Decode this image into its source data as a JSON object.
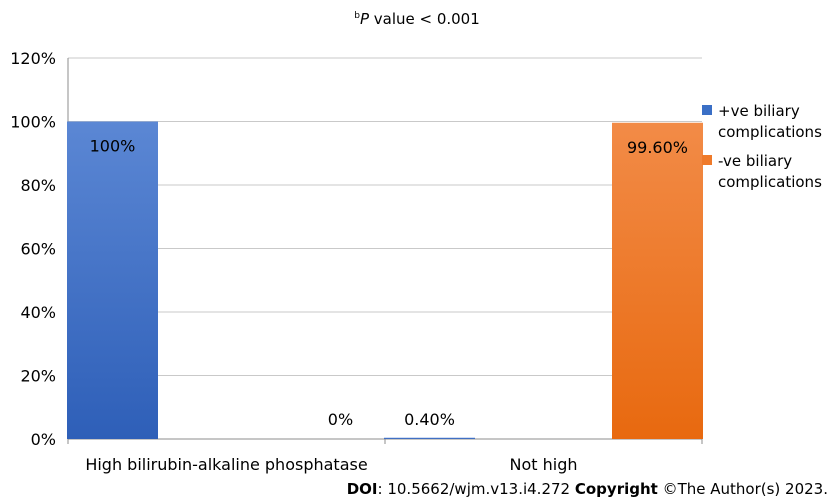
{
  "title": {
    "sup": "b",
    "p": "P",
    "rest": " value < 0.001"
  },
  "chart_data": {
    "type": "bar",
    "categories": [
      "High bilirubin-alkaline phosphatase",
      "Not high"
    ],
    "series": [
      {
        "name": "+ve biliary complications",
        "values": [
          100,
          0.4
        ],
        "labels": [
          "100%",
          "0.40%"
        ],
        "color": "#3a6fc6"
      },
      {
        "name": "-ve biliary complications",
        "values": [
          0,
          99.6
        ],
        "labels": [
          "0%",
          "99.60%"
        ],
        "color": "#ef7a2a"
      }
    ],
    "yticks": [
      "0%",
      "20%",
      "40%",
      "60%",
      "80%",
      "100%",
      "120%"
    ],
    "ylim": [
      0,
      120
    ],
    "grid": true,
    "legend": "right"
  },
  "legend": {
    "items": [
      {
        "line1": "+ve biliary",
        "line2": "complications",
        "color": "#3a6fc6"
      },
      {
        "line1": "-ve biliary",
        "line2": "complications",
        "color": "#ef7a2a"
      }
    ]
  },
  "footer": {
    "doi_label": "DOI",
    "doi_value": ": 10.5662/wjm.v13.i4.272 ",
    "copyright_label": "Copyright",
    "copyright_value": " ©The Author(s) 2023."
  }
}
